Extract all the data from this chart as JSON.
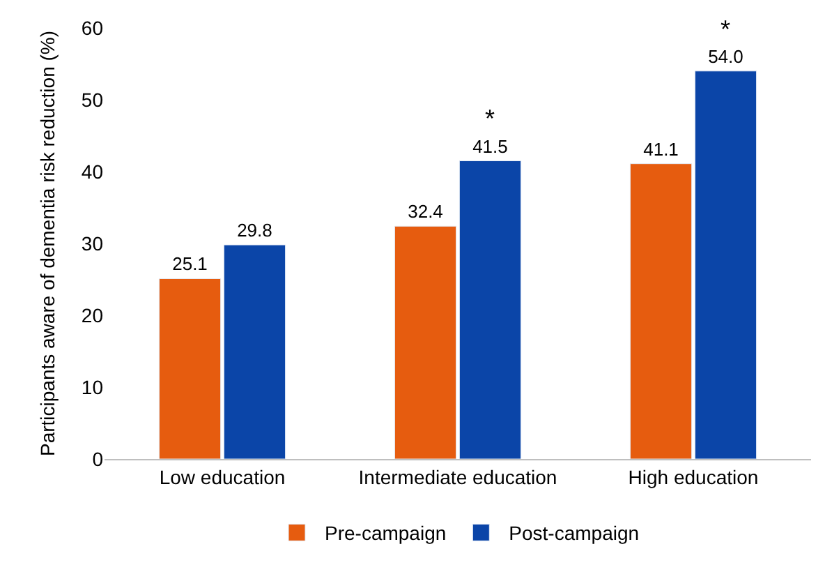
{
  "chart_data": {
    "type": "bar",
    "categories": [
      "Low education",
      "Intermediate education",
      "High education"
    ],
    "series": [
      {
        "name": "Pre-campaign",
        "color": "#e65c0f",
        "values": [
          25.1,
          32.4,
          41.1
        ],
        "value_labels": [
          "25.1",
          "32.4",
          "41.1"
        ]
      },
      {
        "name": "Post-campaign",
        "color": "#0b45a8",
        "values": [
          29.8,
          41.5,
          54.0
        ],
        "value_labels": [
          "29.8",
          "41.5",
          "54.0"
        ]
      }
    ],
    "ylabel": "Participants aware of dementia risk reduction (%)",
    "ylim": [
      0,
      60
    ],
    "yticks": [
      0,
      10,
      20,
      30,
      40,
      50,
      60
    ],
    "legend": "bottom",
    "annotations": [
      "*",
      "*"
    ]
  }
}
